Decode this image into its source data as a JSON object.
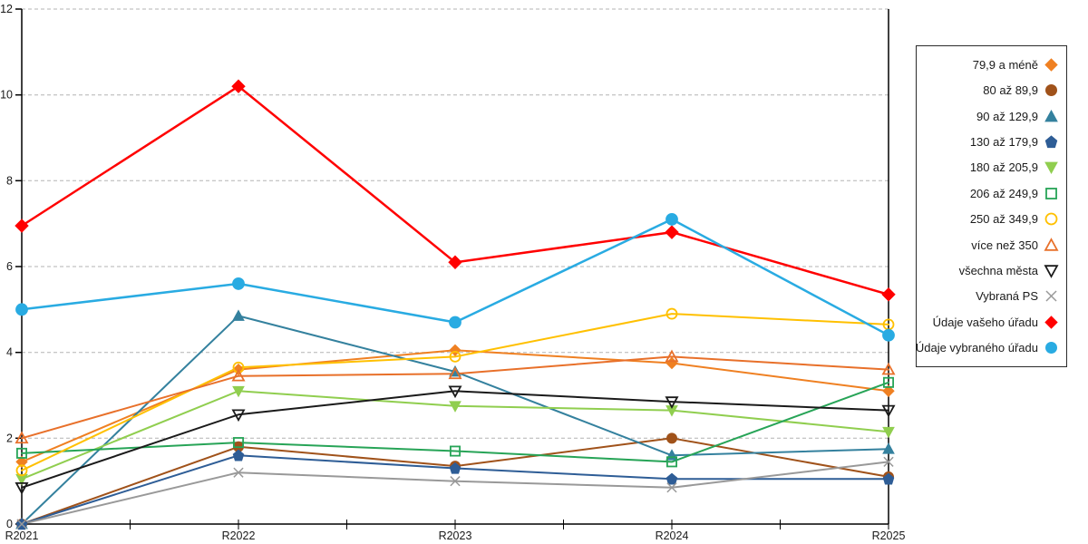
{
  "chart_data": {
    "type": "line",
    "title": "",
    "xlabel": "",
    "ylabel": "",
    "x_labels": [
      "R2021",
      "R2022",
      "R2023",
      "R2024",
      "R2025"
    ],
    "ylim": [
      0,
      12
    ],
    "y_ticks": [
      0,
      2,
      4,
      6,
      8,
      10,
      12
    ],
    "grid": "horizontal dashed gridlines",
    "legend_position": "right outside, bordered box",
    "series": [
      {
        "name": "79,9 a méně",
        "marker": "diamond",
        "filled": true,
        "color": "#EF8022",
        "values": [
          1.45,
          3.6,
          4.05,
          3.75,
          3.1
        ]
      },
      {
        "name": "80 až 89,9",
        "marker": "circle",
        "filled": true,
        "color": "#A0521A",
        "values": [
          0.0,
          1.8,
          1.35,
          2.0,
          1.1
        ]
      },
      {
        "name": "90 až 129,9",
        "marker": "triangle-up",
        "filled": true,
        "color": "#34819E",
        "values": [
          0.0,
          4.85,
          3.55,
          1.6,
          1.75
        ]
      },
      {
        "name": "130 až 179,9",
        "marker": "pentagon",
        "filled": true,
        "color": "#2E5D96",
        "values": [
          0.0,
          1.6,
          1.3,
          1.05,
          1.05
        ]
      },
      {
        "name": "180 až 205,9",
        "marker": "triangle-down",
        "filled": true,
        "color": "#90CE4F",
        "values": [
          1.05,
          3.1,
          2.75,
          2.65,
          2.15
        ]
      },
      {
        "name": "206 až 249,9",
        "marker": "square",
        "filled": false,
        "color": "#27A457",
        "values": [
          1.65,
          1.9,
          1.7,
          1.45,
          3.3
        ]
      },
      {
        "name": "250 až 349,9",
        "marker": "circle",
        "filled": false,
        "color": "#FFC000",
        "values": [
          1.25,
          3.65,
          3.9,
          4.9,
          4.65
        ]
      },
      {
        "name": "více než 350",
        "marker": "triangle-up",
        "filled": false,
        "color": "#E8702A",
        "values": [
          2.0,
          3.45,
          3.5,
          3.9,
          3.6
        ]
      },
      {
        "name": "všechna města",
        "marker": "triangle-down",
        "filled": false,
        "color": "#1A1A1A",
        "values": [
          0.85,
          2.55,
          3.1,
          2.85,
          2.65
        ]
      },
      {
        "name": "Vybraná PS",
        "marker": "x",
        "filled": false,
        "color": "#999999",
        "values": [
          0.0,
          1.2,
          1.0,
          0.85,
          1.45
        ]
      },
      {
        "name": "Údaje vašeho úřadu",
        "marker": "diamond",
        "filled": true,
        "color": "#FF0000",
        "values": [
          6.95,
          10.2,
          6.1,
          6.8,
          5.35
        ]
      },
      {
        "name": "Údaje vybraného úřadu",
        "marker": "circle",
        "filled": true,
        "color": "#29ABE2",
        "values": [
          5.0,
          5.6,
          4.7,
          7.1,
          4.4
        ]
      }
    ],
    "colors": {
      "axis": "#000000",
      "gridline": "#b3b3b3",
      "background": "#ffffff",
      "tick_label": "#1a1a1a"
    }
  }
}
